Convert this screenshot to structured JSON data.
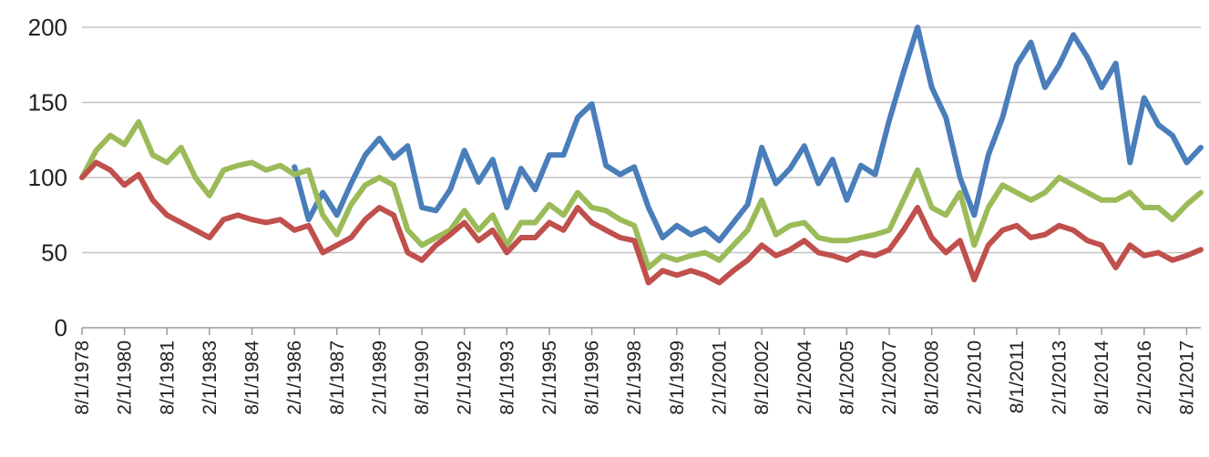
{
  "chart_data": {
    "type": "line",
    "title": "",
    "xlabel": "",
    "ylabel": "",
    "ylim": [
      0,
      200
    ],
    "yticks": [
      0,
      50,
      100,
      150,
      200
    ],
    "grid": true,
    "legend": "none",
    "x": [
      "8/1/1978",
      "2/1/1980",
      "8/1/1981",
      "2/1/1983",
      "8/1/1984",
      "2/1/1986",
      "8/1/1987",
      "2/1/1989",
      "8/1/1990",
      "2/1/1992",
      "8/1/1993",
      "2/1/1995",
      "8/1/1996",
      "2/1/1998",
      "8/1/1999",
      "2/1/2001",
      "8/1/2002",
      "2/1/2004",
      "8/1/2005",
      "2/1/2007",
      "8/1/2008",
      "2/1/2010",
      "8/1/2011",
      "2/1/2013",
      "8/1/2014",
      "2/1/2016",
      "8/1/2017"
    ],
    "series": [
      {
        "color": "#4a7ebb",
        "start_index": 5,
        "x": [
          "2/1/1986",
          "8/1/1986",
          "2/1/1987",
          "8/1/1987",
          "2/1/1988",
          "8/1/1988",
          "2/1/1989",
          "8/1/1989",
          "2/1/1990",
          "8/1/1990",
          "2/1/1991",
          "8/1/1991",
          "2/1/1992",
          "8/1/1992",
          "2/1/1993",
          "8/1/1993",
          "2/1/1994",
          "8/1/1994",
          "2/1/1995",
          "8/1/1995",
          "2/1/1996",
          "8/1/1996",
          "2/1/1997",
          "8/1/1997",
          "2/1/1998",
          "8/1/1998",
          "2/1/1999",
          "8/1/1999",
          "2/1/2000",
          "8/1/2000",
          "2/1/2001",
          "8/1/2001",
          "2/1/2002",
          "8/1/2002",
          "2/1/2003",
          "8/1/2003",
          "2/1/2004",
          "8/1/2004",
          "2/1/2005",
          "8/1/2005",
          "2/1/2006",
          "8/1/2006",
          "2/1/2007",
          "8/1/2007",
          "2/1/2008",
          "8/1/2008",
          "2/1/2009",
          "8/1/2009",
          "2/1/2010",
          "8/1/2010",
          "2/1/2011",
          "8/1/2011",
          "2/1/2012",
          "8/1/2012",
          "2/1/2013",
          "8/1/2013",
          "2/1/2014",
          "8/1/2014",
          "2/1/2015",
          "8/1/2015",
          "2/1/2016",
          "8/1/2016",
          "2/1/2017",
          "8/1/2017",
          "2/1/2018"
        ],
        "values": [
          107,
          72,
          90,
          75,
          96,
          115,
          126,
          113,
          121,
          80,
          78,
          92,
          118,
          97,
          112,
          80,
          106,
          92,
          115,
          115,
          140,
          149,
          108,
          102,
          107,
          80,
          60,
          68,
          62,
          66,
          58,
          70,
          82,
          120,
          96,
          106,
          121,
          96,
          112,
          85,
          108,
          102,
          138,
          170,
          200,
          160,
          140,
          100,
          75,
          115,
          140,
          175,
          190,
          160,
          175,
          195,
          180,
          160,
          176,
          110,
          153,
          135,
          128,
          110,
          120
        ]
      },
      {
        "color": "#9bbb59",
        "start_index": 0,
        "x": [
          "8/1/1978",
          "2/1/1979",
          "8/1/1979",
          "2/1/1980",
          "8/1/1980",
          "2/1/1981",
          "8/1/1981",
          "2/1/1982",
          "8/1/1982",
          "2/1/1983",
          "8/1/1983",
          "2/1/1984",
          "8/1/1984",
          "2/1/1985",
          "8/1/1985",
          "2/1/1986",
          "8/1/1986",
          "2/1/1987",
          "8/1/1987",
          "2/1/1988",
          "8/1/1988",
          "2/1/1989",
          "8/1/1989",
          "2/1/1990",
          "8/1/1990",
          "2/1/1991",
          "8/1/1991",
          "2/1/1992",
          "8/1/1992",
          "2/1/1993",
          "8/1/1993",
          "2/1/1994",
          "8/1/1994",
          "2/1/1995",
          "8/1/1995",
          "2/1/1996",
          "8/1/1996",
          "2/1/1997",
          "8/1/1997",
          "2/1/1998",
          "8/1/1998",
          "2/1/1999",
          "8/1/1999",
          "2/1/2000",
          "8/1/2000",
          "2/1/2001",
          "8/1/2001",
          "2/1/2002",
          "8/1/2002",
          "2/1/2003",
          "8/1/2003",
          "2/1/2004",
          "8/1/2004",
          "2/1/2005",
          "8/1/2005",
          "2/1/2006",
          "8/1/2006",
          "2/1/2007",
          "8/1/2007",
          "2/1/2008",
          "8/1/2008",
          "2/1/2009",
          "8/1/2009",
          "2/1/2010",
          "8/1/2010",
          "2/1/2011",
          "8/1/2011",
          "2/1/2012",
          "8/1/2012",
          "2/1/2013",
          "8/1/2013",
          "2/1/2014",
          "8/1/2014",
          "2/1/2015",
          "8/1/2015",
          "2/1/2016",
          "8/1/2016",
          "2/1/2017",
          "8/1/2017",
          "2/1/2018"
        ],
        "values": [
          100,
          118,
          128,
          122,
          137,
          115,
          110,
          120,
          100,
          88,
          105,
          108,
          110,
          105,
          108,
          102,
          105,
          75,
          62,
          82,
          95,
          100,
          95,
          65,
          55,
          60,
          65,
          78,
          65,
          75,
          55,
          70,
          70,
          82,
          75,
          90,
          80,
          78,
          72,
          68,
          40,
          48,
          45,
          48,
          50,
          45,
          55,
          65,
          85,
          62,
          68,
          70,
          60,
          58,
          58,
          60,
          62,
          65,
          85,
          105,
          80,
          75,
          90,
          55,
          80,
          95,
          90,
          85,
          90,
          100,
          95,
          90,
          85,
          85,
          90,
          80,
          80,
          72,
          82,
          90
        ]
      },
      {
        "color": "#c0504d",
        "start_index": 0,
        "x": [
          "8/1/1978",
          "2/1/1979",
          "8/1/1979",
          "2/1/1980",
          "8/1/1980",
          "2/1/1981",
          "8/1/1981",
          "2/1/1982",
          "8/1/1982",
          "2/1/1983",
          "8/1/1983",
          "2/1/1984",
          "8/1/1984",
          "2/1/1985",
          "8/1/1985",
          "2/1/1986",
          "8/1/1986",
          "2/1/1987",
          "8/1/1987",
          "2/1/1988",
          "8/1/1988",
          "2/1/1989",
          "8/1/1989",
          "2/1/1990",
          "8/1/1990",
          "2/1/1991",
          "8/1/1991",
          "2/1/1992",
          "8/1/1992",
          "2/1/1993",
          "8/1/1993",
          "2/1/1994",
          "8/1/1994",
          "2/1/1995",
          "8/1/1995",
          "2/1/1996",
          "8/1/1996",
          "2/1/1997",
          "8/1/1997",
          "2/1/1998",
          "8/1/1998",
          "2/1/1999",
          "8/1/1999",
          "2/1/2000",
          "8/1/2000",
          "2/1/2001",
          "8/1/2001",
          "2/1/2002",
          "8/1/2002",
          "2/1/2003",
          "8/1/2003",
          "2/1/2004",
          "8/1/2004",
          "2/1/2005",
          "8/1/2005",
          "2/1/2006",
          "8/1/2006",
          "2/1/2007",
          "8/1/2007",
          "2/1/2008",
          "8/1/2008",
          "2/1/2009",
          "8/1/2009",
          "2/1/2010",
          "8/1/2010",
          "2/1/2011",
          "8/1/2011",
          "2/1/2012",
          "8/1/2012",
          "2/1/2013",
          "8/1/2013",
          "2/1/2014",
          "8/1/2014",
          "2/1/2015",
          "8/1/2015",
          "2/1/2016",
          "8/1/2016",
          "2/1/2017",
          "8/1/2017",
          "2/1/2018"
        ],
        "values": [
          100,
          110,
          105,
          95,
          102,
          85,
          75,
          70,
          65,
          60,
          72,
          75,
          72,
          70,
          72,
          65,
          68,
          50,
          55,
          60,
          72,
          80,
          75,
          50,
          45,
          55,
          62,
          70,
          58,
          65,
          50,
          60,
          60,
          70,
          65,
          80,
          70,
          65,
          60,
          58,
          30,
          38,
          35,
          38,
          35,
          30,
          38,
          45,
          55,
          48,
          52,
          58,
          50,
          48,
          45,
          50,
          48,
          52,
          65,
          80,
          60,
          50,
          58,
          32,
          55,
          65,
          68,
          60,
          62,
          68,
          65,
          58,
          55,
          40,
          55,
          48,
          50,
          45,
          48,
          52
        ]
      }
    ]
  }
}
